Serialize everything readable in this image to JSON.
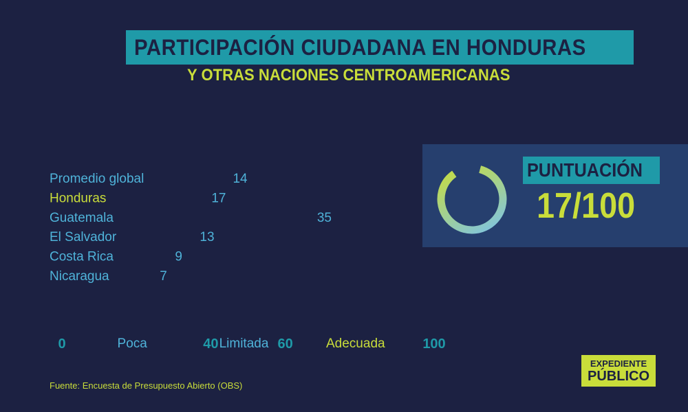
{
  "header": {
    "title": "PARTICIPACIÓN CIUDADANA EN HONDURAS",
    "subtitle": "Y OTRAS NACIONES CENTROAMERICANAS"
  },
  "score": {
    "label": "PUNTUACIÓN",
    "value_text": "17/100",
    "value": 17,
    "max": 100
  },
  "source": "Fuente: Encuesta de Presupuesto Abierto (OBS)",
  "logo": {
    "line1": "EXPEDIENTE",
    "line2": "PÚBLICO"
  },
  "colors": {
    "background": "#1c2142",
    "panel": "#263f6e",
    "teal": "#1f9aa8",
    "lime": "#c9dd3a",
    "light_blue": "#7cc3e8",
    "label_blue": "#4fb3d9"
  },
  "chart_data": {
    "type": "bar",
    "orientation": "horizontal",
    "categories": [
      "Promedio global",
      "Honduras",
      "Guatemala",
      "El Salvador",
      "Costa Rica",
      "Nicaragua"
    ],
    "values": [
      14,
      17,
      35,
      13,
      9,
      7
    ],
    "category_colors": [
      "#4fb3d9",
      "#c9dd3a",
      "#4fb3d9",
      "#4fb3d9",
      "#4fb3d9",
      "#4fb3d9"
    ],
    "xlim": [
      0,
      100
    ],
    "axis_ticks": [
      "0",
      "40",
      "60",
      "100"
    ],
    "axis_tick_values": [
      0,
      40,
      60,
      100
    ],
    "bands": [
      {
        "label": "Poca",
        "center": 20
      },
      {
        "label": "Limitada",
        "center": 50
      },
      {
        "label": "Adecuada",
        "center": 80
      }
    ],
    "title": "",
    "xlabel": "",
    "ylabel": "",
    "grid": false,
    "legend": "none"
  }
}
